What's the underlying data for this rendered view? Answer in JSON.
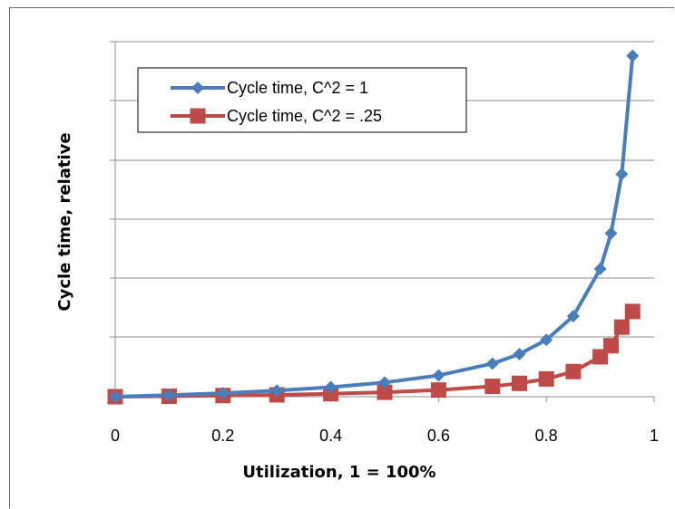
{
  "chart_data": {
    "type": "line",
    "xlabel": "Utilization, 1 = 100%",
    "ylabel": "Cycle time, relative",
    "xlim": [
      0,
      1
    ],
    "ylim": [
      0,
      25
    ],
    "x_ticks": [
      "0",
      "0.2",
      "0.4",
      "0.6",
      "0.8",
      "1"
    ],
    "y_ticks_labeled": false,
    "grid": "horizontal",
    "legend_position": "top-left",
    "series": [
      {
        "name": "Cycle time, C^2 = 1",
        "color": "#4A7EBB",
        "marker": "diamond",
        "x": [
          0,
          0.1,
          0.2,
          0.3,
          0.4,
          0.5,
          0.6,
          0.7,
          0.75,
          0.8,
          0.85,
          0.9,
          0.92,
          0.94,
          0.96
        ],
        "y": [
          0,
          0.11,
          0.25,
          0.43,
          0.67,
          1.0,
          1.5,
          2.33,
          3.0,
          4.0,
          5.67,
          9.0,
          11.5,
          15.67,
          24.0
        ]
      },
      {
        "name": "Cycle time, C^2 = .25",
        "color": "#BE4B48",
        "marker": "square",
        "x": [
          0,
          0.1,
          0.2,
          0.3,
          0.4,
          0.5,
          0.6,
          0.7,
          0.75,
          0.8,
          0.85,
          0.9,
          0.92,
          0.94,
          0.96
        ],
        "y": [
          0,
          0.03,
          0.08,
          0.13,
          0.21,
          0.31,
          0.47,
          0.73,
          0.94,
          1.25,
          1.77,
          2.81,
          3.59,
          4.9,
          6.0
        ]
      }
    ]
  }
}
